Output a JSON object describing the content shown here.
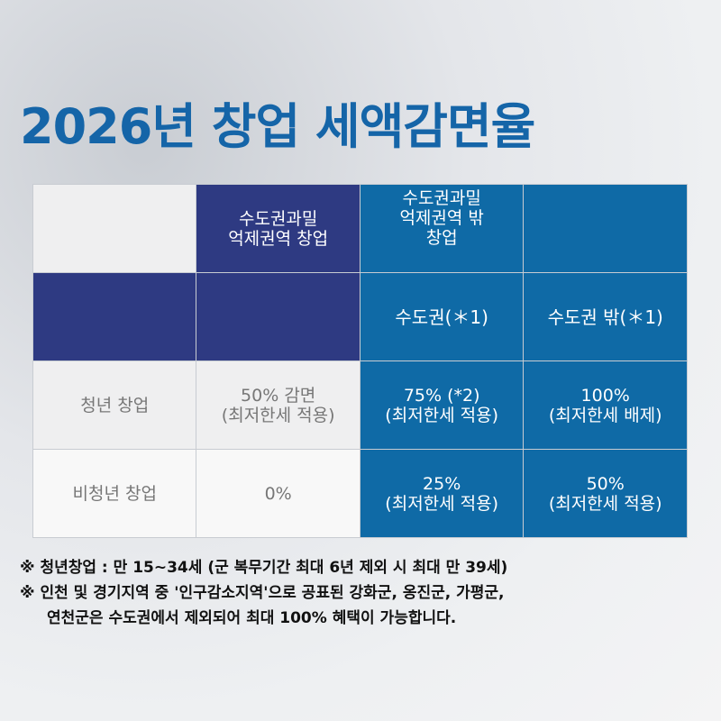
{
  "title": "2026년 창업 세액감면율",
  "table": {
    "header": [
      "",
      "수도권과밀\n억제권역 창업",
      "수도권과밀\n억제권역 밖\n창업",
      ""
    ],
    "subheader": [
      "",
      "",
      "수도권(＊1)",
      "수도권 밖(＊1)"
    ],
    "rows": [
      {
        "label": "청년 창업",
        "cells": [
          "50% 감면\n(최저한세 적용)",
          "75% (*2)\n(최저한세 적용)",
          "100%\n(최저한세 배제)"
        ]
      },
      {
        "label": "비청년 창업",
        "cells": [
          "0%",
          "25%\n(최저한세 적용)",
          "50%\n(최저한세 적용)"
        ]
      }
    ]
  },
  "notes": [
    "※ 청년창업 : 만 15~34세 (군 복무기간 최대 6년 제외 시 최대 만 39세)",
    "※ 인천 및 경기지역 중 '인구감소지역'으로 공표된 강화군, 옹진군, 가평군,",
    "연천군은 수도권에서 제외되어 최대 100% 혜택이 가능합니다."
  ],
  "colors": {
    "title": "#1565a8",
    "navy": "#2e3a82",
    "blue": "#0f6aa6"
  }
}
